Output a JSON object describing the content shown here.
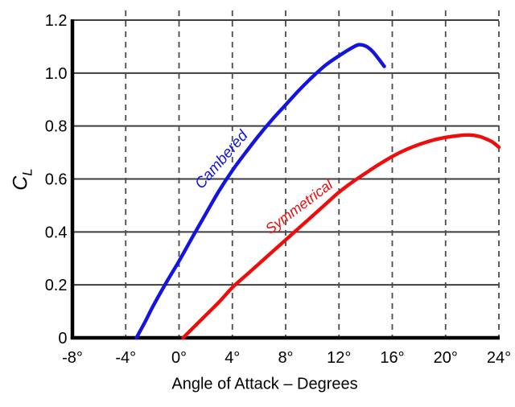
{
  "chart_data": {
    "type": "line",
    "title": "",
    "xlabel": "Angle of Attack – Degrees",
    "ylabel": {
      "main": "C",
      "sub": "L"
    },
    "xlim": [
      -8,
      24
    ],
    "ylim": [
      0,
      1.2
    ],
    "x_ticks": [
      {
        "v": -8,
        "label": "-8°"
      },
      {
        "v": -4,
        "label": "-4°"
      },
      {
        "v": 0,
        "label": "0°"
      },
      {
        "v": 4,
        "label": "4°"
      },
      {
        "v": 8,
        "label": "8°"
      },
      {
        "v": 12,
        "label": "12°"
      },
      {
        "v": 16,
        "label": "16°"
      },
      {
        "v": 20,
        "label": "20°"
      },
      {
        "v": 24,
        "label": "24°"
      }
    ],
    "y_ticks": [
      {
        "v": 0,
        "label": "0"
      },
      {
        "v": 0.2,
        "label": "0.2"
      },
      {
        "v": 0.4,
        "label": "0.4"
      },
      {
        "v": 0.6,
        "label": "0.6"
      },
      {
        "v": 0.8,
        "label": "0.8"
      },
      {
        "v": 1.0,
        "label": "1.0"
      },
      {
        "v": 1.2,
        "label": "1.2"
      }
    ],
    "grid": {
      "horizontal_style": "solid",
      "vertical_style": "dashed",
      "horizontal_color": "#3d3d3d",
      "vertical_color": "#4a4a4a"
    },
    "axis_color": "#000000",
    "legend_position": "inline-labels",
    "series": [
      {
        "name": "Cambered",
        "color": "#1414E0",
        "label": {
          "x": 3.2,
          "y": 0.672,
          "rotation": -49,
          "size": 19
        },
        "points": [
          [
            -3.2,
            0
          ],
          [
            -2.5,
            0.065
          ],
          [
            -2,
            0.115
          ],
          [
            -1,
            0.205
          ],
          [
            0,
            0.29
          ],
          [
            1,
            0.38
          ],
          [
            2,
            0.468
          ],
          [
            3,
            0.555
          ],
          [
            4,
            0.632
          ],
          [
            5,
            0.7
          ],
          [
            6,
            0.765
          ],
          [
            7,
            0.825
          ],
          [
            8,
            0.88
          ],
          [
            9,
            0.935
          ],
          [
            10,
            0.985
          ],
          [
            11,
            1.03
          ],
          [
            12,
            1.065
          ],
          [
            13,
            1.096
          ],
          [
            13.5,
            1.107
          ],
          [
            14,
            1.102
          ],
          [
            14.5,
            1.083
          ],
          [
            15,
            1.052
          ],
          [
            15.4,
            1.025
          ]
        ]
      },
      {
        "name": "Symmetrical",
        "color": "#EE0C0C",
        "label": {
          "x": 9.0,
          "y": 0.495,
          "rotation": -37,
          "size": 18
        },
        "points": [
          [
            0.3,
            0
          ],
          [
            1,
            0.035
          ],
          [
            2,
            0.085
          ],
          [
            3,
            0.135
          ],
          [
            4,
            0.19
          ],
          [
            5,
            0.235
          ],
          [
            6,
            0.28
          ],
          [
            7,
            0.325
          ],
          [
            8,
            0.37
          ],
          [
            9,
            0.415
          ],
          [
            10,
            0.46
          ],
          [
            11,
            0.505
          ],
          [
            12,
            0.55
          ],
          [
            13,
            0.588
          ],
          [
            14,
            0.622
          ],
          [
            15,
            0.655
          ],
          [
            16,
            0.685
          ],
          [
            17,
            0.71
          ],
          [
            18,
            0.73
          ],
          [
            19,
            0.746
          ],
          [
            20,
            0.757
          ],
          [
            21,
            0.764
          ],
          [
            21.8,
            0.766
          ],
          [
            22.5,
            0.761
          ],
          [
            23,
            0.752
          ],
          [
            23.5,
            0.74
          ],
          [
            24,
            0.72
          ]
        ]
      }
    ]
  }
}
